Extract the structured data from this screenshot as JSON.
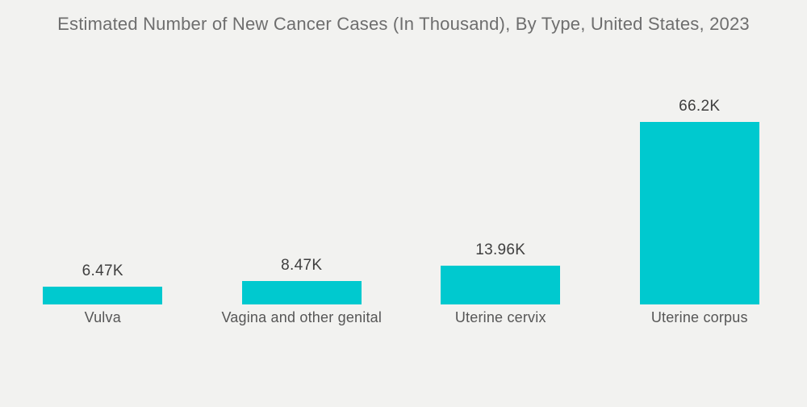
{
  "title": "Estimated Number of New Cancer Cases (In Thousand), By Type, United States, 2023",
  "chart_data": {
    "type": "bar",
    "title": "Estimated Number of New Cancer Cases (In Thousand), By Type, United States, 2023",
    "categories": [
      "Vulva",
      "Vagina and other genital",
      "Uterine cervix",
      "Uterine corpus"
    ],
    "values": [
      6.47,
      8.47,
      13.96,
      66.2
    ],
    "value_labels": [
      "6.47K",
      "8.47K",
      "13.96K",
      "66.2K"
    ],
    "xlabel": "",
    "ylabel": "",
    "unit": "thousand cases",
    "ylim": [
      0,
      66.2
    ],
    "grid": false,
    "legend": false,
    "axes_shown": false
  },
  "colors": {
    "bar": "#00C9CF",
    "background": "#F2F2F0",
    "title_text": "#6E6E6E",
    "value_text": "#3F3F3F",
    "category_text": "#565656"
  }
}
